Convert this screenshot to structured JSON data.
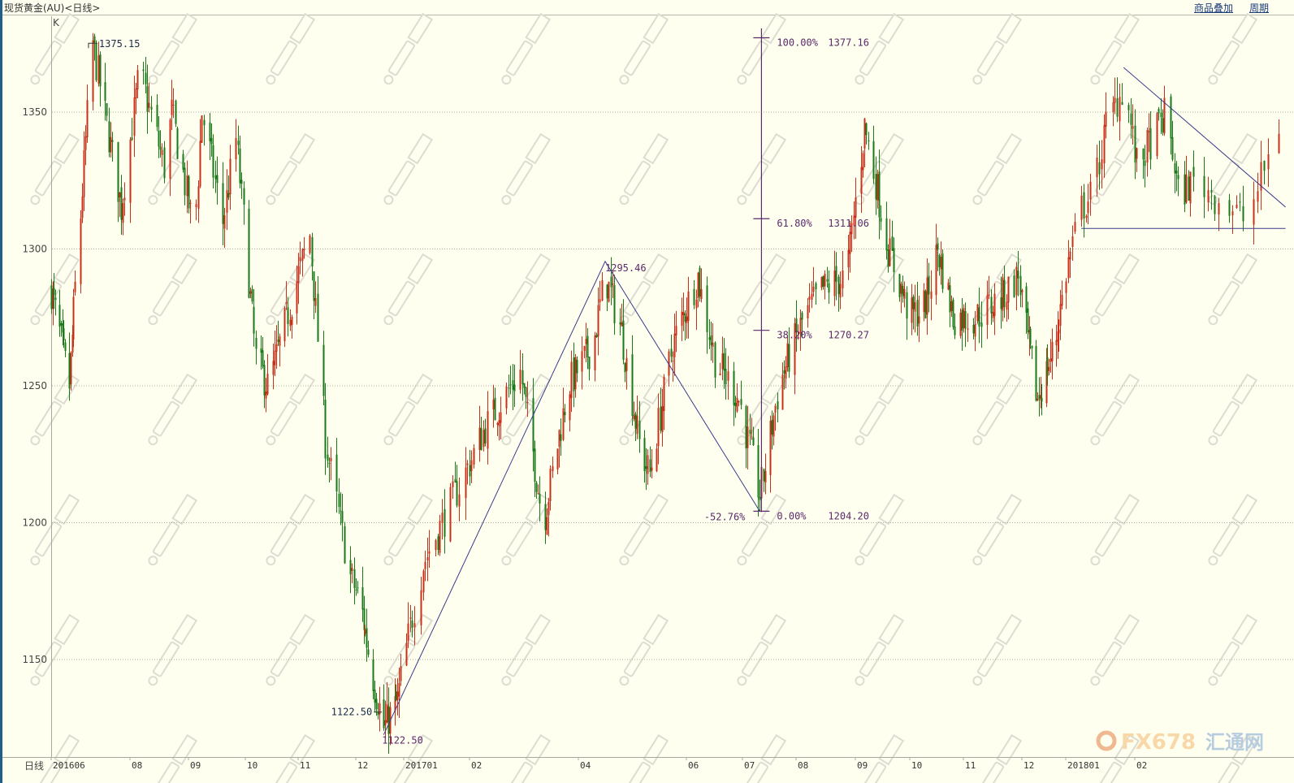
{
  "header": {
    "title": "现货黄金(AU)<日线>",
    "links": [
      "商品叠加",
      "周期"
    ]
  },
  "indicator_label": "K",
  "period_label": "日线",
  "watermark_text": "© FX678 汇通网",
  "logo": {
    "text_fx": "FX678",
    "text_cn": "汇通网"
  },
  "colors": {
    "background": "#fffff0",
    "up": "#c8301c",
    "down": "#1a7a1a",
    "drawing": "#3a3a8a",
    "fib": "#5a2a6a",
    "grid": "#b0b0a0"
  },
  "chart_data": {
    "type": "ohlc",
    "ylim": [
      1115,
      1385
    ],
    "y_ticks": [
      1150,
      1200,
      1250,
      1300,
      1350
    ],
    "x_ticks": [
      {
        "date": "2016-06-14",
        "label": "201606"
      },
      {
        "date": "2016-08-01",
        "label": "08"
      },
      {
        "date": "2016-09-01",
        "label": "09"
      },
      {
        "date": "2016-10-01",
        "label": "10"
      },
      {
        "date": "2016-11-01",
        "label": "11"
      },
      {
        "date": "2016-12-01",
        "label": "12"
      },
      {
        "date": "2017-01-01",
        "label": "201701"
      },
      {
        "date": "2017-02-01",
        "label": "02"
      },
      {
        "date": "2017-04-01",
        "label": "04"
      },
      {
        "date": "2017-06-01",
        "label": "06"
      },
      {
        "date": "2017-07-01",
        "label": "07"
      },
      {
        "date": "2017-08-01",
        "label": "08"
      },
      {
        "date": "2017-09-01",
        "label": "09"
      },
      {
        "date": "2017-10-01",
        "label": "10"
      },
      {
        "date": "2017-11-01",
        "label": "11"
      },
      {
        "date": "2017-12-01",
        "label": "12"
      },
      {
        "date": "2018-01-01",
        "label": "201801"
      },
      {
        "date": "2018-02-01",
        "label": "02"
      }
    ],
    "grid": "horizontal-dotted",
    "approx_close_path": [
      [
        "2016-06-14",
        1285
      ],
      [
        "2016-06-27",
        1250
      ],
      [
        "2016-07-11",
        1375
      ],
      [
        "2016-07-27",
        1315
      ],
      [
        "2016-08-06",
        1365
      ],
      [
        "2016-08-19",
        1330
      ],
      [
        "2016-08-23",
        1350
      ],
      [
        "2016-09-04",
        1305
      ],
      [
        "2016-09-08",
        1350
      ],
      [
        "2016-09-19",
        1310
      ],
      [
        "2016-09-26",
        1340
      ],
      [
        "2016-10-07",
        1260
      ],
      [
        "2016-10-14",
        1250
      ],
      [
        "2016-10-21",
        1265
      ],
      [
        "2016-11-07",
        1305
      ],
      [
        "2016-11-15",
        1230
      ],
      [
        "2016-11-28",
        1180
      ],
      [
        "2016-12-04",
        1170
      ],
      [
        "2016-12-13",
        1140
      ],
      [
        "2016-12-19",
        1125
      ],
      [
        "2016-12-28",
        1135
      ],
      [
        "2017-01-10",
        1185
      ],
      [
        "2017-01-25",
        1210
      ],
      [
        "2017-02-09",
        1235
      ],
      [
        "2017-02-27",
        1255
      ],
      [
        "2017-03-12",
        1200
      ],
      [
        "2017-03-26",
        1250
      ],
      [
        "2017-04-09",
        1265
      ],
      [
        "2017-04-16",
        1290
      ],
      [
        "2017-04-25",
        1270
      ],
      [
        "2017-05-06",
        1225
      ],
      [
        "2017-05-11",
        1218
      ],
      [
        "2017-05-24",
        1265
      ],
      [
        "2017-06-07",
        1290
      ],
      [
        "2017-06-16",
        1260
      ],
      [
        "2017-06-29",
        1245
      ],
      [
        "2017-07-11",
        1210
      ],
      [
        "2017-07-22",
        1250
      ],
      [
        "2017-08-05",
        1275
      ],
      [
        "2017-08-14",
        1285
      ],
      [
        "2017-08-27",
        1290
      ],
      [
        "2017-09-06",
        1345
      ],
      [
        "2017-09-12",
        1325
      ],
      [
        "2017-09-19",
        1300
      ],
      [
        "2017-10-01",
        1275
      ],
      [
        "2017-10-10",
        1280
      ],
      [
        "2017-10-17",
        1300
      ],
      [
        "2017-10-26",
        1275
      ],
      [
        "2017-11-07",
        1275
      ],
      [
        "2017-11-20",
        1282
      ],
      [
        "2017-11-29",
        1290
      ],
      [
        "2017-12-04",
        1270
      ],
      [
        "2017-12-12",
        1245
      ],
      [
        "2017-12-24",
        1265
      ],
      [
        "2018-01-08",
        1315
      ],
      [
        "2018-01-13",
        1320
      ],
      [
        "2018-01-19",
        1345
      ],
      [
        "2018-01-27",
        1360
      ],
      [
        "2018-02-02",
        1330
      ],
      [
        "2018-02-17",
        1350
      ],
      [
        "2018-02-23",
        1320
      ],
      [
        "2018-03-03",
        1325
      ],
      [
        "2018-03-17",
        1310
      ],
      [
        "2018-03-26",
        1345
      ]
    ],
    "annotations": {
      "high": {
        "date": "2016-07-11",
        "value": 1375.15,
        "label": "1375.15"
      },
      "low": {
        "date": "2016-12-19",
        "value": 1122.5,
        "label": "1122.50",
        "label2": "1122.50"
      },
      "swing_high": {
        "date": "2017-04-16",
        "value": 1295.46,
        "label": "1295.46"
      }
    },
    "trend_lines": [
      {
        "points": [
          [
            "2016-12-19",
            1122.5
          ],
          [
            "2017-04-16",
            1295.46
          ],
          [
            "2017-07-11",
            1204.2
          ]
        ]
      },
      {
        "points": [
          [
            "2018-01-27",
            1366.3
          ],
          [
            "2018-03-28",
            1315.3
          ]
        ]
      },
      {
        "points": [
          [
            "2018-01-08",
            1307.5
          ],
          [
            "2018-03-28",
            1307.5
          ]
        ]
      }
    ],
    "fibonacci": {
      "date": "2017-07-12",
      "ratio_label": "-52.76%",
      "levels": [
        {
          "pct": "100.00%",
          "value": 1377.16,
          "label": "1377.16"
        },
        {
          "pct": "61.80%",
          "value": 1311.06,
          "label": "1311.06"
        },
        {
          "pct": "38.20%",
          "value": 1270.27,
          "label": "1270.27"
        },
        {
          "pct": "0.00%",
          "value": 1204.2,
          "label": "1204.20"
        }
      ]
    }
  }
}
